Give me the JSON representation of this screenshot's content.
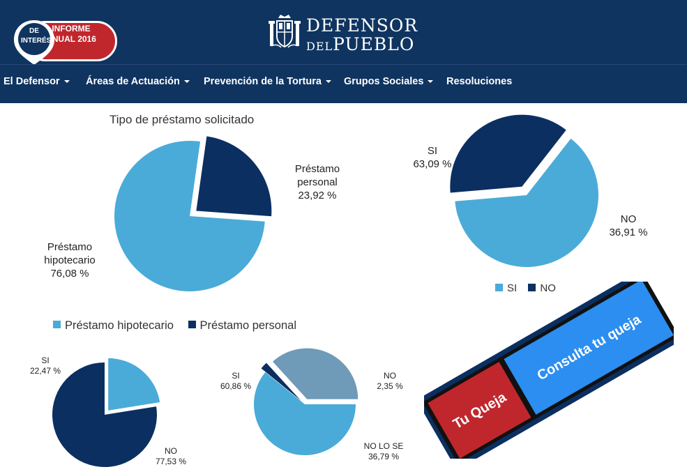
{
  "badge": {
    "pin_text": "DE INTERÉS",
    "pill_text": "INFORME ANUAL 2016"
  },
  "logo": {
    "line1": "DEFENSOR",
    "line2_prefix": "DEL",
    "line2_main": "PUEBLO"
  },
  "nav": [
    {
      "label": "El Defensor",
      "has_dropdown": true
    },
    {
      "label": "Áreas de Actuación",
      "has_dropdown": true
    },
    {
      "label": "Prevención de la Tortura",
      "has_dropdown": true
    },
    {
      "label": "Grupos Sociales",
      "has_dropdown": true
    },
    {
      "label": "Resoluciones",
      "has_dropdown": false
    }
  ],
  "colors": {
    "header_bg": "#0f3460",
    "light_blue": "#4aabd8",
    "dark_blue": "#0b2f60",
    "gray_blue": "#6f9ab8",
    "red": "#c0272d",
    "bright_blue": "#2b8ef0"
  },
  "chart_data": [
    {
      "type": "pie",
      "title": "Tipo de préstamo solicitado",
      "legend": [
        "Préstamo hipotecario",
        "Préstamo personal"
      ],
      "slices": [
        {
          "name": "Préstamo personal",
          "value": 23.92,
          "label_line1": "Préstamo",
          "label_line2": "personal",
          "value_label": "23,92 %"
        },
        {
          "name": "Préstamo hipotecario",
          "value": 76.08,
          "label_line1": "Préstamo",
          "label_line2": "hipotecario",
          "value_label": "76,08 %"
        }
      ]
    },
    {
      "type": "pie",
      "legend": [
        "SI",
        "NO"
      ],
      "slices": [
        {
          "name": "SI",
          "value": 63.09,
          "value_label": "63,09 %"
        },
        {
          "name": "NO",
          "value": 36.91,
          "value_label": "36,91 %"
        }
      ]
    },
    {
      "type": "pie",
      "slices": [
        {
          "name": "SI",
          "value": 22.47,
          "value_label": "22,47 %"
        },
        {
          "name": "NO",
          "value": 77.53,
          "value_label": "77,53 %"
        }
      ]
    },
    {
      "type": "pie",
      "slices": [
        {
          "name": "SI",
          "value": 60.86,
          "value_label": "60,86 %"
        },
        {
          "name": "NO",
          "value": 2.35,
          "value_label": "2,35 %"
        },
        {
          "name": "NO LO SE",
          "value": 36.79,
          "value_label": "36,79 %"
        }
      ]
    }
  ],
  "queja": {
    "tu_queja": "Tu Queja",
    "consulta": "Consulta tu queja"
  }
}
